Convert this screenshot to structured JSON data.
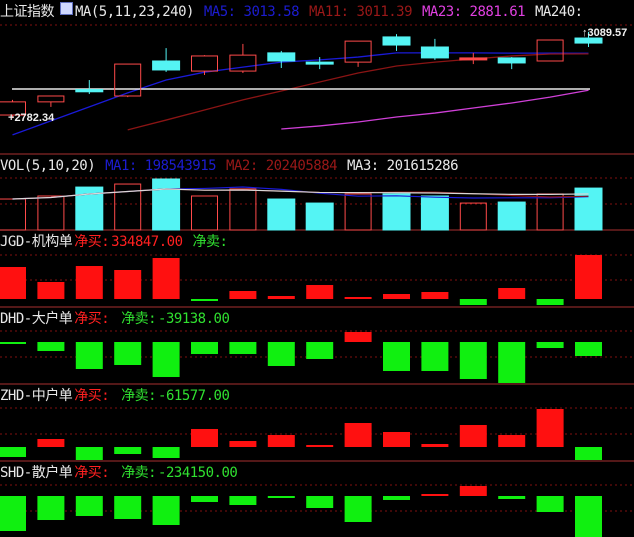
{
  "colors": {
    "up": "#ff4a4a",
    "down": "#54f4f4",
    "buy": "#ff1010",
    "sell": "#10f010",
    "grid": "#801010",
    "divider": "#a83030",
    "ma5": "#1a1ad8",
    "ma11": "#8a1414",
    "ma23": "#d040d8",
    "ma240": "#e8e8e8",
    "vma1": "#1a1ad8",
    "vma2": "#8a1414",
    "vma3": "#d8d8d8"
  },
  "main": {
    "title": "上证指数",
    "icon": "chart-settings-icon",
    "params": "MA(5,11,23,240)",
    "ma5": "MA5: 3013.58",
    "ma11": "MA11: 3011.39",
    "ma23": "MA23: 2881.61",
    "ma240": "MA240:",
    "high_label": "3089.57",
    "low_label": "2782.34"
  },
  "vol": {
    "params": "VOL(5,10,20)",
    "ma1": "MA1: 198543915",
    "ma2": "MA2: 202405884",
    "ma3": "MA3: 201615286"
  },
  "panels": [
    {
      "key": "jgd",
      "name": "JGD-机构单",
      "buy_label": "净买:",
      "buy_value": "334847.00",
      "sell_label": "净卖:",
      "sell_value": ""
    },
    {
      "key": "dhd",
      "name": "DHD-大户单",
      "buy_label": "净买:",
      "buy_value": "",
      "sell_label": "净卖:",
      "sell_value": "-39138.00"
    },
    {
      "key": "zhd",
      "name": "ZHD-中户单",
      "buy_label": "净买:",
      "buy_value": "",
      "sell_label": "净卖:",
      "sell_value": "-61577.00"
    },
    {
      "key": "shd",
      "name": "SHD-散户单",
      "buy_label": "净买:",
      "buy_value": "",
      "sell_label": "净卖:",
      "sell_value": "-234150.00"
    }
  ],
  "chart_data": [
    {
      "type": "candlestick",
      "title": "上证指数",
      "ohlc": [
        [
          2793,
          2847,
          2782,
          2840
        ],
        [
          2840,
          2861,
          2822,
          2861
        ],
        [
          2884,
          2918,
          2868,
          2876
        ],
        [
          2861,
          2975,
          2857,
          2975
        ],
        [
          2986,
          3032,
          2947,
          2954
        ],
        [
          2950,
          3007,
          2936,
          3004
        ],
        [
          2950,
          3047,
          2943,
          3007
        ],
        [
          3015,
          3022,
          2961,
          2986
        ],
        [
          2982,
          3000,
          2957,
          2975
        ],
        [
          2982,
          3057,
          2965,
          3057
        ],
        [
          3072,
          3082,
          3022,
          3043
        ],
        [
          3036,
          3065,
          2990,
          2997
        ],
        [
          2990,
          3015,
          2975,
          2997
        ],
        [
          2997,
          3000,
          2957,
          2979
        ],
        [
          2986,
          3061,
          2986,
          3061
        ],
        [
          3068,
          3090,
          3036,
          3050
        ]
      ],
      "series": [
        {
          "name": "MA5",
          "values": [
            2722,
            2772,
            2822,
            2872,
            2918,
            2946,
            2964,
            2982,
            2990,
            3000,
            3015,
            3015,
            3015,
            3014,
            3014,
            3013.58
          ]
        },
        {
          "name": "MA11",
          "values": [
            null,
            null,
            null,
            2740,
            2775,
            2811,
            2847,
            2879,
            2911,
            2943,
            2968,
            2982,
            2993,
            3004,
            3011,
            3011.39
          ]
        },
        {
          "name": "MA23",
          "values": [
            null,
            null,
            null,
            null,
            null,
            null,
            null,
            2743,
            2754,
            2768,
            2786,
            2800,
            2818,
            2836,
            2857,
            2881.61
          ]
        },
        {
          "name": "MA240",
          "values": [
            2886,
            2886,
            2886,
            2886,
            2886,
            2886,
            2886,
            2886,
            2886,
            2886,
            2886,
            2886,
            2886,
            2886,
            2886,
            2886
          ]
        }
      ],
      "annotations": [
        "3089.57",
        "2782.34"
      ]
    },
    {
      "type": "bar",
      "title": "VOL(5,10,20)",
      "values": [
        184000000,
        202000000,
        255000000,
        273000000,
        303000000,
        202000000,
        244000000,
        184000000,
        160000000,
        214000000,
        214000000,
        202000000,
        160000000,
        166000000,
        214000000,
        249000000
      ],
      "direction": [
        "up",
        "up",
        "down",
        "up",
        "down",
        "up",
        "up",
        "down",
        "down",
        "up",
        "down",
        "down",
        "up",
        "down",
        "up",
        "down"
      ]
    },
    {
      "type": "bar",
      "title": "JGD-机构单",
      "values": [
        243500,
        129400,
        251100,
        220700,
        312000,
        -15200,
        60900,
        22800,
        106500,
        7600,
        38000,
        53300,
        -45700,
        83700,
        -45700,
        334847
      ]
    },
    {
      "type": "bar",
      "title": "DHD-大户单",
      "values": [
        -2800,
        -25200,
        -75500,
        -64300,
        -97900,
        -33600,
        -33600,
        -67100,
        -47500,
        28000,
        -81100,
        -81100,
        -103500,
        -114600,
        -16800,
        -39138
      ]
    },
    {
      "type": "bar",
      "title": "ZHD-中户单",
      "values": [
        -47400,
        37900,
        -61600,
        -33200,
        -52100,
        85300,
        28400,
        56800,
        9500,
        113700,
        71100,
        14200,
        104200,
        56800,
        180000,
        -61577
      ]
    },
    {
      "type": "bar",
      "title": "SHD-散户单",
      "values": [
        -199900,
        -137100,
        -114200,
        -131400,
        -165600,
        -34300,
        -51400,
        -11400,
        -68500,
        -148500,
        -22800,
        5700,
        57100,
        -17100,
        -91400,
        -234150
      ]
    }
  ]
}
